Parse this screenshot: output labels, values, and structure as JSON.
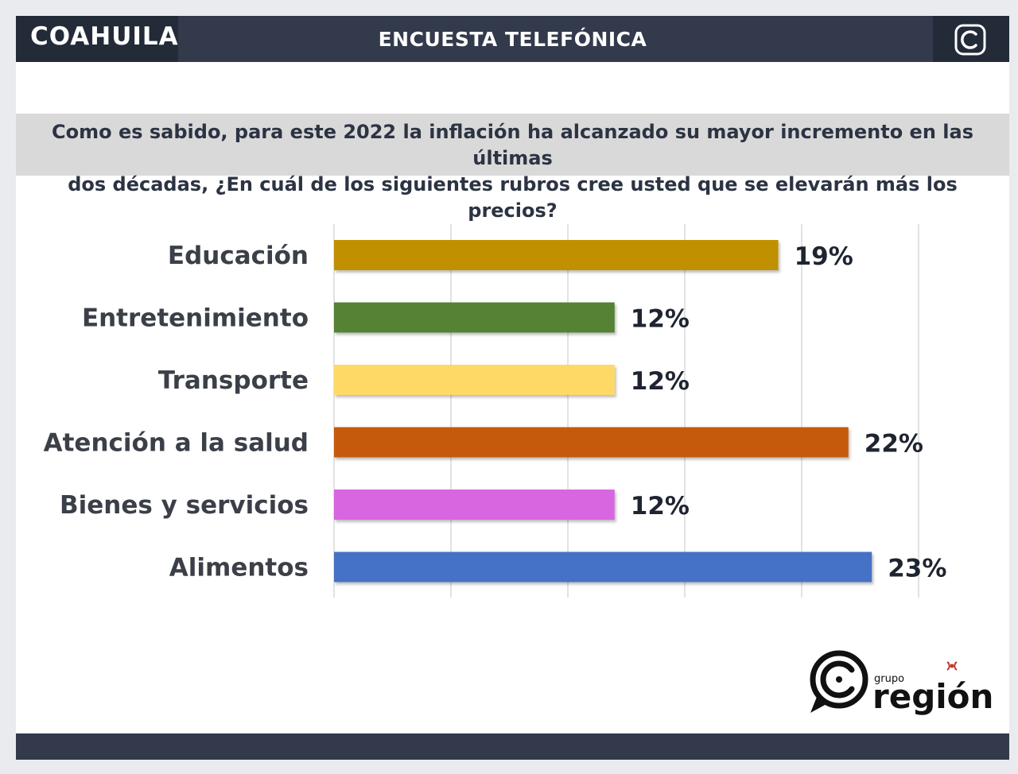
{
  "header": {
    "region": "COAHUILA",
    "title": "ENCUESTA TELEFÓNICA",
    "logo_icon": "c-logo-icon"
  },
  "question": {
    "line1": "Como es sabido, para este 2022 la inflación ha alcanzado su mayor incremento en las últimas",
    "line2": "dos décadas, ¿En cuál de los siguientes rubros cree usted que se elevarán más los precios?"
  },
  "chart_data": {
    "type": "bar",
    "orientation": "horizontal",
    "categories": [
      "Educación",
      "Entretenimiento",
      "Transporte",
      "Atención a la salud",
      "Bienes y servicios",
      "Alimentos"
    ],
    "values": [
      19,
      12,
      12,
      22,
      12,
      23
    ],
    "value_labels": [
      "19%",
      "12%",
      "12%",
      "22%",
      "12%",
      "23%"
    ],
    "colors": [
      "#c09000",
      "#548235",
      "#ffd966",
      "#c55a11",
      "#d966e1",
      "#4472c4"
    ],
    "xlim": [
      0,
      25
    ],
    "grid": true,
    "title": "",
    "xlabel": "",
    "ylabel": ""
  },
  "brand": {
    "small": "grupo",
    "name": "región",
    "icon": "grupo-region-logo-icon"
  }
}
